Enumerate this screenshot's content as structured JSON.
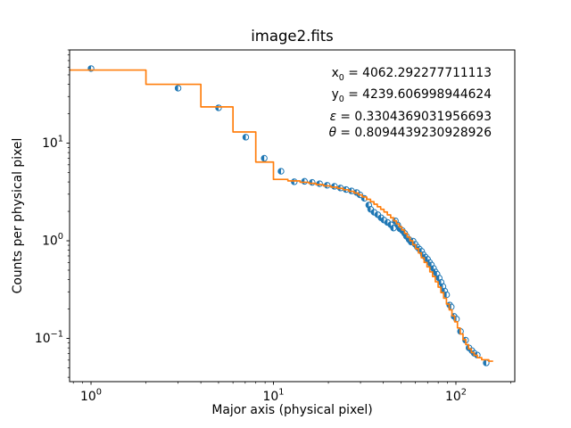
{
  "chart_data": {
    "type": "scatter",
    "title": "image2.fits",
    "xlabel": "Major axis (physical pixel)",
    "ylabel": "Counts per physical pixel",
    "xscale": "log",
    "yscale": "log",
    "xlim": [
      0.763,
      210.3
    ],
    "ylim": [
      0.0361,
      90
    ],
    "x_major_ticks": [
      1,
      10,
      100
    ],
    "y_major_ticks": [
      0.1,
      1,
      10
    ],
    "grid": false,
    "legend": "none",
    "axis_color": "#000000",
    "annotation": {
      "separator": " = ",
      "lines": [
        {
          "symbol": "x",
          "sub": "0",
          "italic": false,
          "value": "4062.292277711113"
        },
        {
          "symbol": "y",
          "sub": "0",
          "italic": false,
          "value": "4239.606998944624"
        },
        {
          "symbol": "ε",
          "sub": "",
          "italic": true,
          "value": "0.3304369031956693"
        },
        {
          "symbol": "θ",
          "sub": "",
          "italic": true,
          "value": "0.8094439230928926"
        }
      ]
    },
    "series": [
      {
        "name": "isophote-data-points",
        "type": "scatter",
        "marker": "half-filled-circle",
        "color": "#1f77b4",
        "points": [
          [
            1.0,
            58
          ],
          [
            3.0,
            36.5
          ],
          [
            5.0,
            23.0
          ],
          [
            7.05,
            11.5
          ],
          [
            8.9,
            7.0
          ],
          [
            11.0,
            5.15
          ],
          [
            13.0,
            4.02
          ],
          [
            14.8,
            4.06
          ],
          [
            16.3,
            3.96
          ],
          [
            17.9,
            3.84
          ],
          [
            19.7,
            3.7
          ],
          [
            21.6,
            3.61
          ],
          [
            23.3,
            3.47
          ],
          [
            25.0,
            3.35
          ],
          [
            26.8,
            3.24
          ],
          [
            28.6,
            3.12
          ],
          [
            29.8,
            2.95
          ],
          [
            31.5,
            2.72
          ],
          [
            33.3,
            2.32
          ],
          [
            34.1,
            2.1
          ],
          [
            35.6,
            1.96
          ],
          [
            37.3,
            1.85
          ],
          [
            38.9,
            1.72
          ],
          [
            40.3,
            1.63
          ],
          [
            42.2,
            1.54
          ],
          [
            44.0,
            1.46
          ],
          [
            45.5,
            1.35
          ],
          [
            46.6,
            1.6
          ],
          [
            48.0,
            1.45
          ],
          [
            49.3,
            1.33
          ],
          [
            50.9,
            1.27
          ],
          [
            52.4,
            1.19
          ],
          [
            53.6,
            1.11
          ],
          [
            55.4,
            1.03
          ],
          [
            56.9,
            0.97
          ],
          [
            58.3,
            0.99
          ],
          [
            59.9,
            0.92
          ],
          [
            61.5,
            0.86
          ],
          [
            63.2,
            0.82
          ],
          [
            64.9,
            0.78
          ],
          [
            66.3,
            0.72
          ],
          [
            68.1,
            0.68
          ],
          [
            70.0,
            0.645
          ],
          [
            71.8,
            0.6
          ],
          [
            73.5,
            0.565
          ],
          [
            75.5,
            0.52
          ],
          [
            77.2,
            0.48
          ],
          [
            78.8,
            0.455
          ],
          [
            81.0,
            0.415
          ],
          [
            83.0,
            0.375
          ],
          [
            84.9,
            0.34
          ],
          [
            86.9,
            0.305
          ],
          [
            89.0,
            0.28
          ],
          [
            92.5,
            0.22
          ],
          [
            94.3,
            0.21
          ],
          [
            97.8,
            0.168
          ],
          [
            100.7,
            0.158
          ],
          [
            106.0,
            0.118
          ],
          [
            113.0,
            0.096
          ],
          [
            118.0,
            0.08
          ],
          [
            122.4,
            0.075
          ],
          [
            126.0,
            0.0705
          ],
          [
            131.0,
            0.0675
          ],
          [
            146.6,
            0.0562
          ]
        ]
      },
      {
        "name": "model-step-line",
        "type": "line",
        "drawstyle": "steps-mid",
        "color": "#ff7f0e",
        "points": [
          [
            1,
            56
          ],
          [
            3,
            40
          ],
          [
            5,
            23.5
          ],
          [
            7,
            13.0
          ],
          [
            9,
            6.4
          ],
          [
            11,
            4.25
          ],
          [
            13,
            4.1
          ],
          [
            15,
            3.97
          ],
          [
            16.3,
            3.87
          ],
          [
            17.9,
            3.76
          ],
          [
            19.7,
            3.65
          ],
          [
            21.6,
            3.54
          ],
          [
            23.3,
            3.44
          ],
          [
            25,
            3.33
          ],
          [
            26.8,
            3.21
          ],
          [
            28.6,
            3.08
          ],
          [
            29.8,
            2.95
          ],
          [
            31.5,
            2.81
          ],
          [
            33.3,
            2.66
          ],
          [
            34.8,
            2.51
          ],
          [
            36.3,
            2.37
          ],
          [
            37.9,
            2.23
          ],
          [
            39.5,
            2.1
          ],
          [
            41.2,
            1.97
          ],
          [
            43,
            1.84
          ],
          [
            44.8,
            1.72
          ],
          [
            46.4,
            1.6
          ],
          [
            48,
            1.49
          ],
          [
            49.7,
            1.39
          ],
          [
            51.4,
            1.29
          ],
          [
            53.2,
            1.19
          ],
          [
            55,
            1.09
          ],
          [
            57,
            1.0
          ],
          [
            59,
            0.91
          ],
          [
            61.2,
            0.83
          ],
          [
            63.5,
            0.75
          ],
          [
            65.8,
            0.67
          ],
          [
            68.2,
            0.6
          ],
          [
            70.7,
            0.54
          ],
          [
            73.2,
            0.48
          ],
          [
            75.8,
            0.43
          ],
          [
            78.5,
            0.38
          ],
          [
            81.3,
            0.335
          ],
          [
            84.2,
            0.295
          ],
          [
            87.2,
            0.258
          ],
          [
            90.3,
            0.225
          ],
          [
            93.5,
            0.196
          ],
          [
            96.8,
            0.17
          ],
          [
            100.2,
            0.148
          ],
          [
            103.8,
            0.128
          ],
          [
            107.5,
            0.111
          ],
          [
            111.3,
            0.0975
          ],
          [
            115.3,
            0.0865
          ],
          [
            119.4,
            0.0782
          ],
          [
            123.6,
            0.0718
          ],
          [
            128,
            0.0672
          ],
          [
            134,
            0.0635
          ],
          [
            143,
            0.0605
          ],
          [
            160,
            0.0585
          ]
        ]
      }
    ]
  }
}
